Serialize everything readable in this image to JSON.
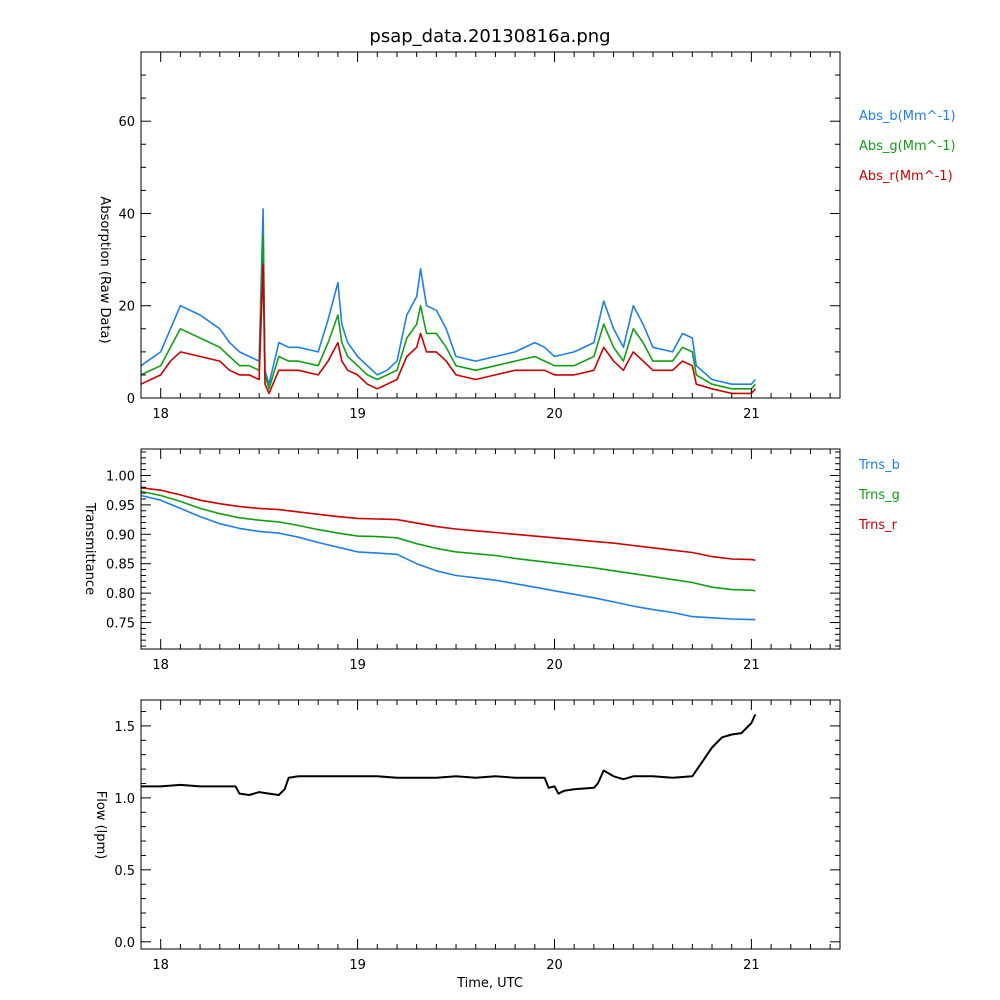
{
  "title": "psap_data.20130816a.png",
  "colors": {
    "blue": "#1f7fe8",
    "green": "#12a012",
    "red": "#cc0000",
    "black": "#000000"
  },
  "chart_data": [
    {
      "type": "line",
      "ylabel": "Absorption (Raw Data)",
      "xlim": [
        17.9,
        21.45
      ],
      "ylim": [
        0,
        75
      ],
      "x_ticks": [
        "18",
        "19",
        "20",
        "21"
      ],
      "y_ticks": [
        "0",
        "20",
        "40",
        "60"
      ],
      "grid": false,
      "legend_placement": "right",
      "series": [
        {
          "name": "Abs_b(Mm^-1)",
          "color": "#1f7fe8",
          "x": [
            17.9,
            18.0,
            18.05,
            18.1,
            18.2,
            18.3,
            18.35,
            18.4,
            18.45,
            18.5,
            18.52,
            18.53,
            18.55,
            18.6,
            18.65,
            18.7,
            18.8,
            18.85,
            18.9,
            18.92,
            18.95,
            19.0,
            19.05,
            19.1,
            19.15,
            19.2,
            19.25,
            19.3,
            19.32,
            19.35,
            19.4,
            19.45,
            19.5,
            19.6,
            19.7,
            19.8,
            19.9,
            19.95,
            20.0,
            20.1,
            20.2,
            20.25,
            20.3,
            20.35,
            20.4,
            20.45,
            20.5,
            20.6,
            20.65,
            20.7,
            20.72,
            20.8,
            20.9,
            21.0,
            21.02
          ],
          "y": [
            7,
            10,
            15,
            20,
            18,
            15,
            12,
            10,
            9,
            8,
            41,
            6,
            3,
            12,
            11,
            11,
            10,
            17,
            25,
            16,
            12,
            9,
            7,
            5,
            6,
            8,
            18,
            22,
            28,
            20,
            19,
            15,
            9,
            8,
            9,
            10,
            12,
            11,
            9,
            10,
            12,
            21,
            15,
            11,
            20,
            16,
            11,
            10,
            14,
            13,
            7,
            4,
            3,
            3,
            4
          ]
        },
        {
          "name": "Abs_g(Mm^-1)",
          "color": "#12a012",
          "x": [
            17.9,
            18.0,
            18.05,
            18.1,
            18.2,
            18.3,
            18.35,
            18.4,
            18.45,
            18.5,
            18.52,
            18.53,
            18.55,
            18.6,
            18.65,
            18.7,
            18.8,
            18.85,
            18.9,
            18.92,
            18.95,
            19.0,
            19.05,
            19.1,
            19.15,
            19.2,
            19.25,
            19.3,
            19.32,
            19.35,
            19.4,
            19.45,
            19.5,
            19.6,
            19.7,
            19.8,
            19.9,
            19.95,
            20.0,
            20.1,
            20.2,
            20.25,
            20.3,
            20.35,
            20.4,
            20.45,
            20.5,
            20.6,
            20.65,
            20.7,
            20.72,
            20.8,
            20.9,
            21.0,
            21.02
          ],
          "y": [
            5,
            7,
            11,
            15,
            13,
            11,
            9,
            7,
            7,
            6,
            35,
            5,
            2,
            9,
            8,
            8,
            7,
            12,
            18,
            12,
            9,
            7,
            5,
            4,
            5,
            6,
            13,
            16,
            20,
            14,
            14,
            11,
            7,
            6,
            7,
            8,
            9,
            8,
            7,
            7,
            9,
            16,
            11,
            8,
            15,
            12,
            8,
            8,
            11,
            10,
            5,
            3,
            2,
            2,
            3
          ]
        },
        {
          "name": "Abs_r(Mm^-1)",
          "color": "#cc0000",
          "x": [
            17.9,
            18.0,
            18.05,
            18.1,
            18.2,
            18.3,
            18.35,
            18.4,
            18.45,
            18.5,
            18.52,
            18.53,
            18.55,
            18.6,
            18.65,
            18.7,
            18.8,
            18.85,
            18.9,
            18.92,
            18.95,
            19.0,
            19.05,
            19.1,
            19.15,
            19.2,
            19.25,
            19.3,
            19.32,
            19.35,
            19.4,
            19.45,
            19.5,
            19.6,
            19.7,
            19.8,
            19.9,
            19.95,
            20.0,
            20.1,
            20.2,
            20.25,
            20.3,
            20.35,
            20.4,
            20.45,
            20.5,
            20.6,
            20.65,
            20.7,
            20.72,
            20.8,
            20.9,
            21.0,
            21.02
          ],
          "y": [
            3,
            5,
            8,
            10,
            9,
            8,
            6,
            5,
            5,
            4,
            29,
            3,
            1,
            6,
            6,
            6,
            5,
            8,
            12,
            8,
            6,
            5,
            3,
            2,
            3,
            4,
            9,
            11,
            14,
            10,
            10,
            8,
            5,
            4,
            5,
            6,
            6,
            6,
            5,
            5,
            6,
            11,
            8,
            6,
            10,
            8,
            6,
            6,
            8,
            7,
            3,
            2,
            1,
            1,
            2
          ]
        }
      ]
    },
    {
      "type": "line",
      "ylabel": "Transmittance",
      "xlim": [
        17.9,
        21.45
      ],
      "ylim": [
        0.705,
        1.045
      ],
      "x_ticks": [
        "18",
        "19",
        "20",
        "21"
      ],
      "y_ticks": [
        "0.75",
        "0.80",
        "0.85",
        "0.90",
        "0.95",
        "1.00"
      ],
      "grid": false,
      "legend_placement": "right",
      "series": [
        {
          "name": "Trns_b",
          "color": "#1f7fe8",
          "x": [
            17.9,
            18.0,
            18.1,
            18.2,
            18.3,
            18.4,
            18.5,
            18.6,
            18.7,
            18.8,
            18.9,
            19.0,
            19.1,
            19.2,
            19.3,
            19.4,
            19.5,
            19.6,
            19.7,
            19.8,
            19.9,
            20.0,
            20.1,
            20.2,
            20.3,
            20.4,
            20.5,
            20.6,
            20.7,
            20.8,
            20.9,
            21.0,
            21.02
          ],
          "y": [
            0.966,
            0.958,
            0.944,
            0.93,
            0.918,
            0.91,
            0.905,
            0.902,
            0.895,
            0.886,
            0.878,
            0.87,
            0.868,
            0.866,
            0.85,
            0.838,
            0.83,
            0.826,
            0.822,
            0.816,
            0.81,
            0.804,
            0.798,
            0.792,
            0.785,
            0.778,
            0.772,
            0.767,
            0.76,
            0.758,
            0.756,
            0.755,
            0.755
          ]
        },
        {
          "name": "Trns_g",
          "color": "#12a012",
          "x": [
            17.9,
            18.0,
            18.1,
            18.2,
            18.3,
            18.4,
            18.5,
            18.6,
            18.7,
            18.8,
            18.9,
            19.0,
            19.1,
            19.2,
            19.3,
            19.4,
            19.5,
            19.6,
            19.7,
            19.8,
            19.9,
            20.0,
            20.1,
            20.2,
            20.3,
            20.4,
            20.5,
            20.6,
            20.7,
            20.8,
            20.9,
            21.0,
            21.02
          ],
          "y": [
            0.973,
            0.966,
            0.956,
            0.944,
            0.935,
            0.928,
            0.924,
            0.921,
            0.915,
            0.908,
            0.902,
            0.897,
            0.896,
            0.894,
            0.884,
            0.876,
            0.87,
            0.867,
            0.864,
            0.859,
            0.855,
            0.851,
            0.847,
            0.843,
            0.838,
            0.833,
            0.828,
            0.823,
            0.818,
            0.81,
            0.806,
            0.805,
            0.804
          ]
        },
        {
          "name": "Trns_r",
          "color": "#cc0000",
          "x": [
            17.9,
            18.0,
            18.1,
            18.2,
            18.3,
            18.4,
            18.5,
            18.6,
            18.7,
            18.8,
            18.9,
            19.0,
            19.1,
            19.2,
            19.3,
            19.4,
            19.5,
            19.6,
            19.7,
            19.8,
            19.9,
            20.0,
            20.1,
            20.2,
            20.3,
            20.4,
            20.5,
            20.6,
            20.7,
            20.8,
            20.9,
            21.0,
            21.02
          ],
          "y": [
            0.979,
            0.975,
            0.967,
            0.958,
            0.952,
            0.947,
            0.944,
            0.942,
            0.938,
            0.934,
            0.93,
            0.927,
            0.926,
            0.925,
            0.919,
            0.913,
            0.909,
            0.906,
            0.903,
            0.9,
            0.897,
            0.894,
            0.891,
            0.888,
            0.885,
            0.881,
            0.877,
            0.873,
            0.869,
            0.862,
            0.858,
            0.857,
            0.856
          ]
        }
      ]
    },
    {
      "type": "line",
      "xlabel": "Time, UTC",
      "ylabel": "Flow (lpm)",
      "xlim": [
        17.9,
        21.45
      ],
      "ylim": [
        -0.05,
        1.68
      ],
      "x_ticks": [
        "18",
        "19",
        "20",
        "21"
      ],
      "y_ticks": [
        "0.0",
        "0.5",
        "1.0",
        "1.5"
      ],
      "grid": false,
      "series": [
        {
          "color": "#000000",
          "x": [
            17.9,
            18.0,
            18.1,
            18.2,
            18.3,
            18.38,
            18.4,
            18.45,
            18.5,
            18.55,
            18.6,
            18.63,
            18.65,
            18.7,
            18.8,
            18.9,
            19.0,
            19.1,
            19.2,
            19.3,
            19.4,
            19.5,
            19.6,
            19.7,
            19.8,
            19.9,
            19.95,
            19.97,
            20.0,
            20.02,
            20.05,
            20.1,
            20.2,
            20.22,
            20.25,
            20.3,
            20.35,
            20.4,
            20.5,
            20.6,
            20.7,
            20.75,
            20.8,
            20.85,
            20.9,
            20.95,
            21.0,
            21.02
          ],
          "y": [
            1.08,
            1.08,
            1.09,
            1.08,
            1.08,
            1.08,
            1.03,
            1.02,
            1.04,
            1.03,
            1.02,
            1.06,
            1.14,
            1.15,
            1.15,
            1.15,
            1.15,
            1.15,
            1.14,
            1.14,
            1.14,
            1.15,
            1.14,
            1.15,
            1.14,
            1.14,
            1.14,
            1.07,
            1.08,
            1.03,
            1.05,
            1.06,
            1.07,
            1.1,
            1.19,
            1.15,
            1.13,
            1.15,
            1.15,
            1.14,
            1.15,
            1.25,
            1.35,
            1.42,
            1.44,
            1.45,
            1.52,
            1.58
          ]
        }
      ]
    }
  ]
}
